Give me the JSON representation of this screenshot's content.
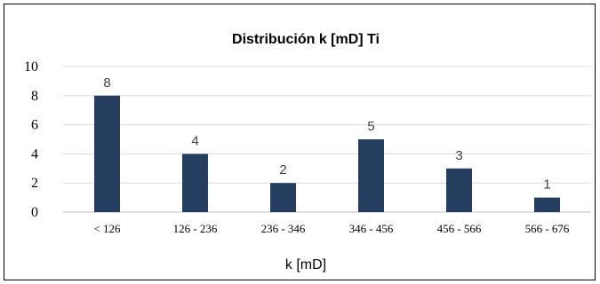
{
  "chart_data": {
    "type": "bar",
    "title": "Distribución k [mD] Ti",
    "xlabel": "k [mD]",
    "ylabel": "",
    "categories": [
      "< 126",
      "126 - 236",
      "236 - 346",
      "346 - 456",
      "456 - 566",
      "566 - 676"
    ],
    "values": [
      8,
      4,
      2,
      5,
      3,
      1
    ],
    "ylim": [
      0,
      10
    ],
    "yticks": [
      0,
      2,
      4,
      6,
      8,
      10
    ],
    "grid": true,
    "legend": "none",
    "bar_color": "#253d5e",
    "grid_color": "#d9d9d9"
  }
}
